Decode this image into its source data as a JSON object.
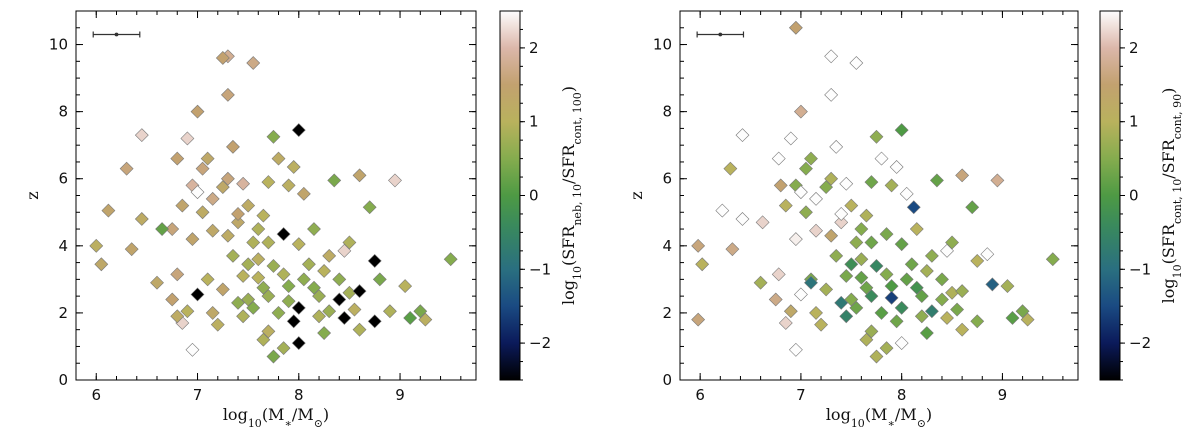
{
  "chart_data": [
    {
      "type": "scatter",
      "marker": "diamond",
      "colormap": "gist_earth",
      "xlabel": "log10(M*/M⊙)",
      "ylabel": "z",
      "xlim": [
        5.8,
        9.75
      ],
      "ylim": [
        0,
        11
      ],
      "xticks": [
        6,
        7,
        8,
        9
      ],
      "yticks": [
        0,
        2,
        4,
        6,
        8,
        10
      ],
      "colorbar": {
        "label": "log10(SFRneb,10/SFRcont,100)",
        "range": [
          -2.5,
          2.5
        ],
        "ticks": [
          -2,
          -1,
          0,
          1,
          2
        ]
      },
      "error_bar": {
        "x": [
          5.97,
          6.43
        ],
        "y": 10.3
      },
      "points": [
        [
          6.3,
          6.3,
          1.6
        ],
        [
          6.12,
          5.05,
          1.4
        ],
        [
          6.45,
          7.3,
          2.2
        ],
        [
          6.35,
          3.9,
          1.4
        ],
        [
          6.0,
          4.0,
          1.1
        ],
        [
          6.05,
          3.45,
          1.3
        ],
        [
          6.45,
          4.8,
          1.2
        ],
        [
          6.6,
          2.9,
          1.3
        ],
        [
          6.75,
          2.4,
          1.5
        ],
        [
          6.8,
          3.15,
          1.6
        ],
        [
          6.9,
          2.05,
          1.0
        ],
        [
          6.85,
          1.7,
          2.2
        ],
        [
          6.8,
          1.9,
          1.2
        ],
        [
          6.95,
          0.9,
          2.6
        ],
        [
          6.85,
          5.2,
          1.4
        ],
        [
          6.75,
          4.5,
          1.6
        ],
        [
          6.8,
          6.6,
          1.5
        ],
        [
          6.9,
          7.2,
          2.2
        ],
        [
          6.95,
          5.8,
          1.9
        ],
        [
          7.0,
          8.0,
          1.5
        ],
        [
          7.05,
          6.3,
          1.6
        ],
        [
          7.1,
          6.6,
          1.3
        ],
        [
          7.0,
          5.6,
          2.6
        ],
        [
          7.05,
          5.0,
          1.2
        ],
        [
          6.95,
          4.2,
          1.4
        ],
        [
          6.65,
          4.5,
          0.2
        ],
        [
          7.0,
          2.55,
          -2.5
        ],
        [
          7.1,
          3.0,
          1.0
        ],
        [
          7.15,
          4.45,
          1.3
        ],
        [
          7.15,
          2.0,
          1.3
        ],
        [
          7.2,
          1.65,
          1.1
        ],
        [
          7.3,
          9.65,
          1.8
        ],
        [
          7.25,
          9.6,
          1.5
        ],
        [
          7.3,
          8.5,
          1.6
        ],
        [
          7.35,
          6.95,
          1.5
        ],
        [
          7.3,
          6.0,
          1.6
        ],
        [
          7.45,
          5.85,
          1.9
        ],
        [
          7.5,
          5.2,
          1.2
        ],
        [
          7.4,
          4.7,
          1.3
        ],
        [
          7.55,
          4.1,
          0.9
        ],
        [
          7.5,
          3.45,
          0.8
        ],
        [
          7.6,
          3.05,
          1.0
        ],
        [
          7.65,
          2.75,
          0.6
        ],
        [
          7.5,
          2.4,
          0.7
        ],
        [
          7.45,
          1.9,
          0.9
        ],
        [
          7.55,
          9.45,
          1.7
        ],
        [
          7.7,
          5.9,
          1.0
        ],
        [
          7.65,
          4.9,
          1.0
        ],
        [
          7.7,
          4.1,
          0.9
        ],
        [
          7.75,
          7.25,
          0.5
        ],
        [
          7.8,
          6.6,
          1.2
        ],
        [
          7.75,
          3.4,
          0.7
        ],
        [
          7.7,
          1.45,
          1.1
        ],
        [
          7.65,
          1.2,
          0.9
        ],
        [
          7.8,
          2.0,
          0.6
        ],
        [
          7.85,
          4.35,
          -2.5
        ],
        [
          7.9,
          5.8,
          1.1
        ],
        [
          7.95,
          6.35,
          1.1
        ],
        [
          7.9,
          2.8,
          0.5
        ],
        [
          7.95,
          1.75,
          -2.5
        ],
        [
          7.85,
          0.95,
          0.8
        ],
        [
          7.75,
          0.7,
          0.4
        ],
        [
          8.0,
          7.45,
          -2.5
        ],
        [
          8.05,
          5.55,
          1.4
        ],
        [
          8.0,
          4.05,
          1.0
        ],
        [
          8.05,
          3.0,
          0.6
        ],
        [
          8.0,
          2.15,
          -2.5
        ],
        [
          8.0,
          1.1,
          -2.5
        ],
        [
          8.15,
          4.5,
          0.6
        ],
        [
          8.2,
          2.5,
          0.7
        ],
        [
          8.25,
          1.4,
          0.5
        ],
        [
          8.3,
          3.7,
          1.2
        ],
        [
          8.35,
          5.95,
          0.4
        ],
        [
          8.4,
          2.4,
          -2.5
        ],
        [
          8.45,
          3.85,
          2.2
        ],
        [
          8.45,
          1.85,
          -2.5
        ],
        [
          8.5,
          2.6,
          0.8
        ],
        [
          8.5,
          4.1,
          0.9
        ],
        [
          8.55,
          2.1,
          1.1
        ],
        [
          8.6,
          1.5,
          0.9
        ],
        [
          8.6,
          6.1,
          1.4
        ],
        [
          8.6,
          2.65,
          -2.5
        ],
        [
          8.75,
          3.55,
          -2.5
        ],
        [
          8.7,
          5.15,
          0.5
        ],
        [
          8.75,
          1.75,
          -2.5
        ],
        [
          8.8,
          3.0,
          0.4
        ],
        [
          8.9,
          2.05,
          0.9
        ],
        [
          8.95,
          5.95,
          2.2
        ],
        [
          9.05,
          2.8,
          1.0
        ],
        [
          9.1,
          1.85,
          0.1
        ],
        [
          9.2,
          2.05,
          0.4
        ],
        [
          9.25,
          1.8,
          1.1
        ],
        [
          9.5,
          3.6,
          0.5
        ],
        [
          7.25,
          2.7,
          1.4
        ],
        [
          7.35,
          3.7,
          0.8
        ],
        [
          7.4,
          2.3,
          0.6
        ],
        [
          7.45,
          3.1,
          1.0
        ],
        [
          7.55,
          2.15,
          0.5
        ],
        [
          7.6,
          3.6,
          1.1
        ],
        [
          7.7,
          2.5,
          0.7
        ],
        [
          7.85,
          3.15,
          0.9
        ],
        [
          7.9,
          2.35,
          0.6
        ],
        [
          8.1,
          3.45,
          0.8
        ],
        [
          8.15,
          2.75,
          0.5
        ],
        [
          8.25,
          3.25,
          1.0
        ],
        [
          8.3,
          2.05,
          0.7
        ],
        [
          8.4,
          3.0,
          0.6
        ],
        [
          8.2,
          1.9,
          0.9
        ],
        [
          7.3,
          4.3,
          1.2
        ],
        [
          7.4,
          4.95,
          1.5
        ],
        [
          7.6,
          4.5,
          0.9
        ],
        [
          7.15,
          5.4,
          1.7
        ],
        [
          7.25,
          5.75,
          1.3
        ]
      ]
    },
    {
      "type": "scatter",
      "marker": "diamond",
      "colormap": "gist_earth",
      "xlabel": "log10(M*/M⊙)",
      "ylabel": "z",
      "xlim": [
        5.8,
        9.75
      ],
      "ylim": [
        0,
        11
      ],
      "xticks": [
        6,
        7,
        8,
        9
      ],
      "yticks": [
        0,
        2,
        4,
        6,
        8,
        10
      ],
      "colorbar": {
        "label": "log10(SFRcont,10/SFRcont,90)",
        "range": [
          -2.5,
          2.5
        ],
        "ticks": [
          -2,
          -1,
          0,
          1,
          2
        ]
      },
      "error_bar": {
        "x": [
          5.97,
          6.43
        ],
        "y": 10.3
      },
      "points": [
        [
          6.3,
          6.3,
          1.0
        ],
        [
          6.22,
          5.05,
          2.6
        ],
        [
          6.42,
          7.3,
          2.6
        ],
        [
          6.32,
          3.9,
          1.7
        ],
        [
          5.98,
          4.0,
          1.6
        ],
        [
          6.02,
          3.45,
          1.0
        ],
        [
          6.42,
          4.8,
          2.6
        ],
        [
          6.6,
          2.9,
          0.8
        ],
        [
          6.75,
          2.4,
          1.7
        ],
        [
          6.78,
          3.15,
          2.2
        ],
        [
          6.9,
          2.05,
          1.3
        ],
        [
          6.85,
          1.7,
          2.2
        ],
        [
          5.98,
          1.8,
          1.6
        ],
        [
          6.95,
          0.9,
          2.6
        ],
        [
          6.85,
          5.2,
          1.0
        ],
        [
          6.62,
          4.7,
          2.2
        ],
        [
          6.78,
          6.6,
          2.6
        ],
        [
          6.9,
          7.2,
          2.6
        ],
        [
          6.95,
          5.8,
          0.5
        ],
        [
          7.0,
          8.0,
          1.8
        ],
        [
          7.05,
          6.3,
          0.5
        ],
        [
          7.1,
          6.6,
          0.6
        ],
        [
          7.0,
          5.6,
          2.6
        ],
        [
          7.05,
          5.0,
          0.6
        ],
        [
          6.95,
          4.2,
          2.4
        ],
        [
          6.8,
          5.8,
          1.5
        ],
        [
          7.0,
          2.55,
          2.6
        ],
        [
          7.1,
          3.0,
          0.4
        ],
        [
          7.15,
          4.45,
          2.2
        ],
        [
          7.15,
          2.0,
          1.0
        ],
        [
          7.2,
          1.65,
          1.0
        ],
        [
          7.3,
          9.65,
          2.6
        ],
        [
          6.95,
          10.5,
          1.5
        ],
        [
          7.3,
          8.5,
          2.6
        ],
        [
          7.35,
          6.95,
          2.6
        ],
        [
          7.3,
          6.0,
          0.9
        ],
        [
          7.45,
          5.85,
          2.6
        ],
        [
          7.5,
          5.2,
          1.0
        ],
        [
          7.4,
          4.7,
          2.2
        ],
        [
          7.55,
          4.1,
          0.6
        ],
        [
          7.5,
          3.45,
          -0.3
        ],
        [
          7.6,
          3.05,
          0.2
        ],
        [
          7.65,
          2.75,
          0.3
        ],
        [
          7.5,
          2.4,
          0.5
        ],
        [
          7.45,
          1.9,
          -0.6
        ],
        [
          7.55,
          9.45,
          2.6
        ],
        [
          7.7,
          5.9,
          0.3
        ],
        [
          7.65,
          4.9,
          0.9
        ],
        [
          7.7,
          4.1,
          0.3
        ],
        [
          7.75,
          7.25,
          0.6
        ],
        [
          7.8,
          6.6,
          2.6
        ],
        [
          7.75,
          3.4,
          -0.5
        ],
        [
          7.7,
          1.45,
          0.7
        ],
        [
          7.65,
          1.2,
          0.9
        ],
        [
          7.8,
          2.0,
          0.1
        ],
        [
          7.85,
          4.35,
          0.4
        ],
        [
          7.9,
          5.8,
          0.8
        ],
        [
          7.95,
          6.35,
          2.6
        ],
        [
          7.9,
          2.8,
          0.0
        ],
        [
          7.95,
          1.75,
          0.3
        ],
        [
          7.85,
          0.95,
          0.8
        ],
        [
          7.75,
          0.7,
          0.9
        ],
        [
          8.0,
          7.45,
          0.0
        ],
        [
          8.05,
          5.55,
          2.6
        ],
        [
          8.0,
          4.05,
          0.2
        ],
        [
          8.05,
          3.0,
          0.2
        ],
        [
          8.0,
          2.15,
          -0.4
        ],
        [
          8.0,
          1.1,
          2.6
        ],
        [
          8.15,
          4.5,
          1.0
        ],
        [
          8.2,
          2.5,
          0.2
        ],
        [
          8.25,
          1.4,
          0.1
        ],
        [
          8.3,
          3.7,
          0.6
        ],
        [
          8.35,
          5.95,
          0.2
        ],
        [
          8.4,
          2.4,
          0.5
        ],
        [
          8.45,
          3.85,
          2.6
        ],
        [
          8.45,
          1.85,
          1.0
        ],
        [
          8.5,
          2.6,
          0.9
        ],
        [
          8.5,
          4.1,
          0.6
        ],
        [
          8.55,
          2.1,
          0.4
        ],
        [
          8.6,
          1.5,
          1.0
        ],
        [
          8.6,
          6.1,
          1.6
        ],
        [
          8.6,
          2.65,
          0.7
        ],
        [
          8.75,
          3.55,
          1.0
        ],
        [
          8.7,
          5.15,
          0.2
        ],
        [
          8.75,
          1.75,
          0.5
        ],
        [
          8.85,
          3.75,
          2.6
        ],
        [
          8.9,
          2.85,
          -1.2
        ],
        [
          8.95,
          5.95,
          1.8
        ],
        [
          9.05,
          2.8,
          0.8
        ],
        [
          9.1,
          1.85,
          0.1
        ],
        [
          9.2,
          2.05,
          0.4
        ],
        [
          9.25,
          1.8,
          1.0
        ],
        [
          9.5,
          3.6,
          0.5
        ],
        [
          8.12,
          5.15,
          -1.5
        ],
        [
          7.9,
          2.45,
          -1.6
        ],
        [
          7.25,
          2.7,
          0.8
        ],
        [
          7.35,
          3.7,
          0.6
        ],
        [
          7.4,
          2.3,
          -0.8
        ],
        [
          7.45,
          3.1,
          0.4
        ],
        [
          7.55,
          2.15,
          0.3
        ],
        [
          7.6,
          3.6,
          0.7
        ],
        [
          7.7,
          2.5,
          -0.4
        ],
        [
          7.85,
          3.15,
          0.5
        ],
        [
          7.1,
          2.9,
          -0.9
        ],
        [
          8.1,
          3.45,
          0.3
        ],
        [
          8.15,
          2.75,
          -0.2
        ],
        [
          8.25,
          3.25,
          0.8
        ],
        [
          8.3,
          2.05,
          -0.7
        ],
        [
          8.4,
          3.0,
          0.4
        ],
        [
          8.2,
          1.9,
          0.6
        ],
        [
          7.3,
          4.3,
          1.4
        ],
        [
          7.4,
          4.95,
          2.6
        ],
        [
          7.6,
          4.5,
          0.5
        ],
        [
          7.15,
          5.4,
          2.6
        ],
        [
          7.25,
          5.75,
          0.5
        ]
      ]
    }
  ]
}
